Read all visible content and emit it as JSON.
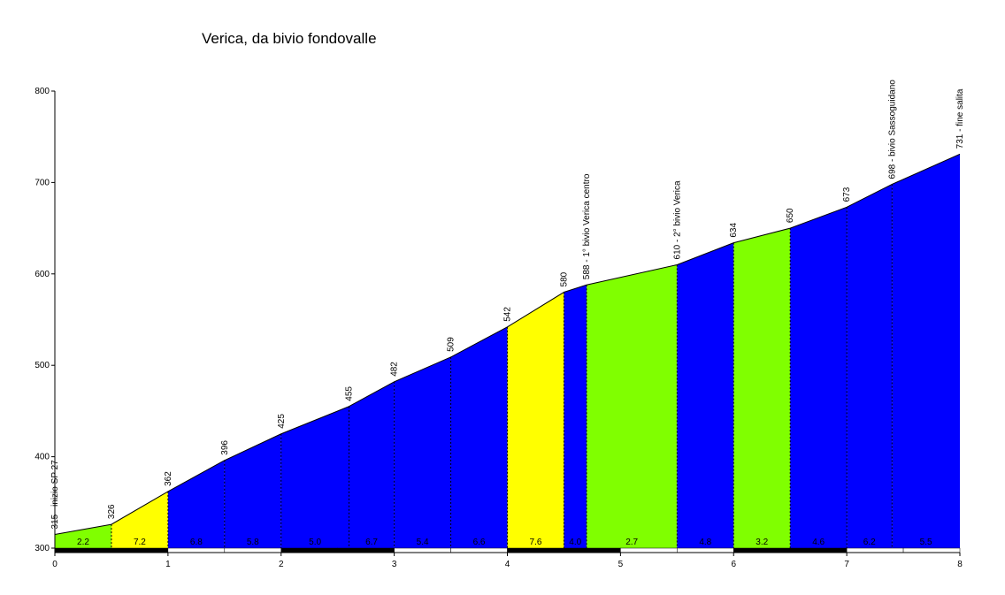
{
  "chart_data": {
    "type": "area",
    "title": "Verica, da bivio fondovalle",
    "xlabel": "",
    "ylabel": "",
    "xlim": [
      0,
      8
    ],
    "ylim": [
      300,
      800
    ],
    "x_ticks": [
      0,
      1,
      2,
      3,
      4,
      5,
      6,
      7,
      8
    ],
    "y_ticks": [
      300,
      400,
      500,
      600,
      700,
      800
    ],
    "profile": [
      {
        "x": 0,
        "y": 315,
        "label": "315 - inizio SP 27"
      },
      {
        "x": 0.5,
        "y": 326,
        "label": "326"
      },
      {
        "x": 1.0,
        "y": 362,
        "label": "362"
      },
      {
        "x": 1.5,
        "y": 396,
        "label": "396"
      },
      {
        "x": 2.0,
        "y": 425,
        "label": "425"
      },
      {
        "x": 2.6,
        "y": 455,
        "label": "455"
      },
      {
        "x": 3.0,
        "y": 482,
        "label": "482"
      },
      {
        "x": 3.5,
        "y": 509,
        "label": "509"
      },
      {
        "x": 4.0,
        "y": 542,
        "label": "542"
      },
      {
        "x": 4.5,
        "y": 580,
        "label": "580"
      },
      {
        "x": 4.7,
        "y": 588,
        "label": "588 - 1° bivio Verica centro"
      },
      {
        "x": 5.5,
        "y": 610,
        "label": "610 - 2° bivio Verica"
      },
      {
        "x": 6.0,
        "y": 634,
        "label": "634"
      },
      {
        "x": 6.5,
        "y": 650,
        "label": "650"
      },
      {
        "x": 7.0,
        "y": 673,
        "label": "673"
      },
      {
        "x": 7.4,
        "y": 698,
        "label": "698 - bivio Sassoguidano"
      },
      {
        "x": 8.0,
        "y": 731,
        "label": "731 - fine salita"
      }
    ],
    "segments": [
      {
        "gradient": "2.2",
        "color": "#80ff00"
      },
      {
        "gradient": "7.2",
        "color": "#ffff00"
      },
      {
        "gradient": "6.8",
        "color": "#0000ff"
      },
      {
        "gradient": "5.8",
        "color": "#0000ff"
      },
      {
        "gradient": "5.0",
        "color": "#0000ff"
      },
      {
        "gradient": "6.7",
        "color": "#0000ff"
      },
      {
        "gradient": "5.4",
        "color": "#0000ff"
      },
      {
        "gradient": "6.6",
        "color": "#0000ff"
      },
      {
        "gradient": "7.6",
        "color": "#ffff00"
      },
      {
        "gradient": "4.0",
        "color": "#0000ff"
      },
      {
        "gradient": "2.7",
        "color": "#80ff00"
      },
      {
        "gradient": "4.8",
        "color": "#0000ff"
      },
      {
        "gradient": "3.2",
        "color": "#80ff00"
      },
      {
        "gradient": "4.6",
        "color": "#0000ff"
      },
      {
        "gradient": "6.2",
        "color": "#0000ff"
      },
      {
        "gradient": "5.5",
        "color": "#0000ff"
      }
    ],
    "grid": false,
    "legend": "none"
  }
}
